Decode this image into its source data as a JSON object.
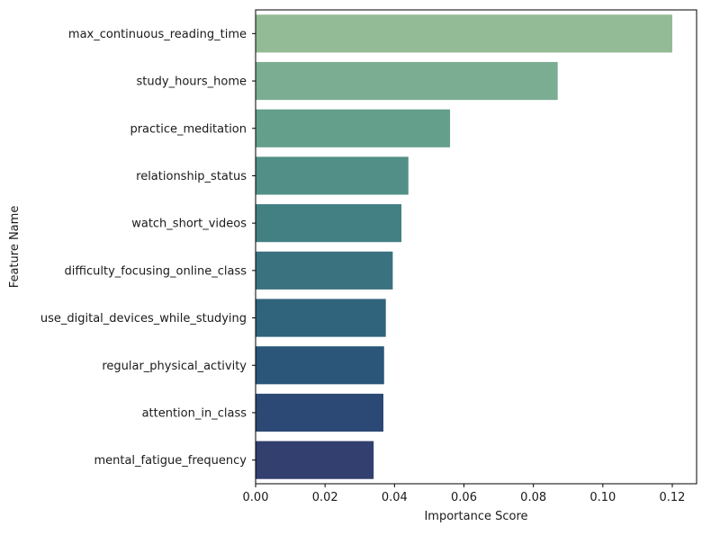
{
  "chart_data": {
    "type": "bar",
    "orientation": "horizontal",
    "title": "",
    "xlabel": "Importance Score",
    "ylabel": "Feature Name",
    "xlim": [
      0,
      0.127
    ],
    "xticks": [
      "0.00",
      "0.02",
      "0.04",
      "0.06",
      "0.08",
      "0.10",
      "0.12"
    ],
    "xtick_values": [
      0,
      0.02,
      0.04,
      0.06,
      0.08,
      0.1,
      0.12
    ],
    "grid": false,
    "categories": [
      "max_continuous_reading_time",
      "study_hours_home",
      "practice_meditation",
      "relationship_status",
      "watch_short_videos",
      "difficulty_focusing_online_class",
      "use_digital_devices_while_studying",
      "regular_physical_activity",
      "attention_in_class",
      "mental_fatigue_frequency"
    ],
    "values": [
      0.12,
      0.087,
      0.056,
      0.044,
      0.042,
      0.0395,
      0.0375,
      0.037,
      0.0368,
      0.034
    ],
    "colors": [
      "#93bb95",
      "#7aad92",
      "#649f8c",
      "#529087",
      "#438083",
      "#3a727f",
      "#30637c",
      "#2b5579",
      "#2c4875",
      "#323f6f"
    ]
  }
}
